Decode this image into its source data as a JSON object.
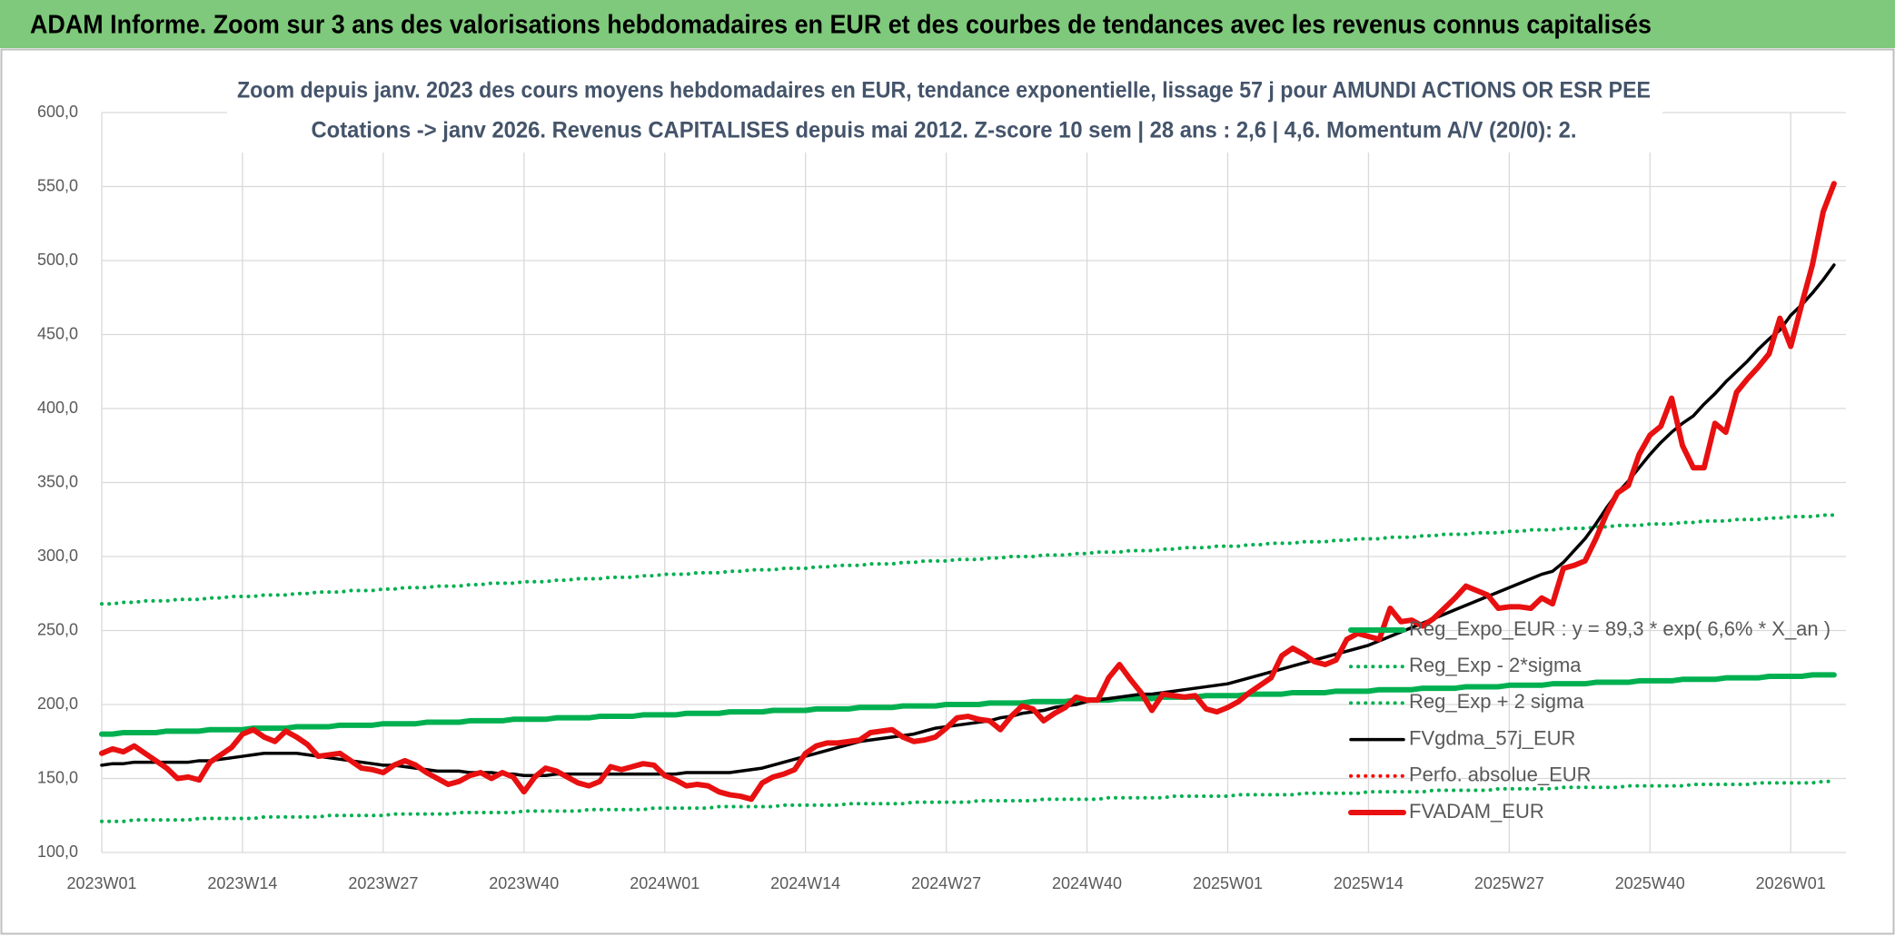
{
  "header": {
    "title": "ADAM Informe. Zoom sur 3 ans des valorisations hebdomadaires en EUR et des courbes de tendances avec les revenus connus capitalisés"
  },
  "chart_data": {
    "type": "line",
    "title": "Zoom depuis janv. 2023 des cours moyens hebdomadaires en EUR, tendance exponentielle, lissage 57 j pour AMUNDI ACTIONS OR ESR PEE",
    "subtitle": "Cotations -> janv 2026. Revenus CAPITALISES depuis mai 2012. Z-score 10 sem | 28 ans : 2,6 | 4,6. Momentum A/V (20/0): 2.",
    "ylim": [
      100,
      600
    ],
    "yticks": [
      {
        "value": 100,
        "label": "100,0"
      },
      {
        "value": 150,
        "label": "150,0"
      },
      {
        "value": 200,
        "label": "200,0"
      },
      {
        "value": 250,
        "label": "250,0"
      },
      {
        "value": 300,
        "label": "300,0"
      },
      {
        "value": 350,
        "label": "350,0"
      },
      {
        "value": 400,
        "label": "400,0"
      },
      {
        "value": 450,
        "label": "450,0"
      },
      {
        "value": 500,
        "label": "500,0"
      },
      {
        "value": 550,
        "label": "550,0"
      },
      {
        "value": 600,
        "label": "600,0"
      }
    ],
    "grid": true,
    "legend": "right",
    "categories": [
      "2023W01",
      null,
      null,
      null,
      null,
      null,
      null,
      null,
      null,
      null,
      null,
      null,
      null,
      "2023W14",
      null,
      null,
      null,
      null,
      null,
      null,
      null,
      null,
      null,
      null,
      null,
      null,
      "2023W27",
      null,
      null,
      null,
      null,
      null,
      null,
      null,
      null,
      null,
      null,
      null,
      null,
      "2023W40",
      null,
      null,
      null,
      null,
      null,
      null,
      null,
      null,
      null,
      null,
      null,
      null,
      "2024W01",
      null,
      null,
      null,
      null,
      null,
      null,
      null,
      null,
      null,
      null,
      null,
      null,
      "2024W14",
      null,
      null,
      null,
      null,
      null,
      null,
      null,
      null,
      null,
      null,
      null,
      null,
      "2024W27",
      null,
      null,
      null,
      null,
      null,
      null,
      null,
      null,
      null,
      null,
      null,
      null,
      "2024W40",
      null,
      null,
      null,
      null,
      null,
      null,
      null,
      null,
      null,
      null,
      null,
      null,
      "2025W01",
      null,
      null,
      null,
      null,
      null,
      null,
      null,
      null,
      null,
      null,
      null,
      null,
      "2025W14",
      null,
      null,
      null,
      null,
      null,
      null,
      null,
      null,
      null,
      null,
      null,
      null,
      "2025W27",
      null,
      null,
      null,
      null,
      null,
      null,
      null,
      null,
      null,
      null,
      null,
      null,
      "2025W40",
      null,
      null,
      null,
      null,
      null,
      null,
      null,
      null,
      null,
      null,
      null,
      null,
      "2026W01",
      null,
      null,
      null,
      null
    ],
    "series": [
      {
        "name": "Reg_Expo_EUR : y = 89,3 * exp( 6,6% * X_an )",
        "color": "#00b050",
        "style": "thick",
        "values": [
          180,
          180,
          181,
          181,
          181,
          181,
          182,
          182,
          182,
          182,
          183,
          183,
          183,
          183,
          184,
          184,
          184,
          184,
          185,
          185,
          185,
          185,
          186,
          186,
          186,
          186,
          187,
          187,
          187,
          187,
          188,
          188,
          188,
          188,
          189,
          189,
          189,
          189,
          190,
          190,
          190,
          190,
          191,
          191,
          191,
          191,
          192,
          192,
          192,
          192,
          193,
          193,
          193,
          193,
          194,
          194,
          194,
          194,
          195,
          195,
          195,
          195,
          196,
          196,
          196,
          196,
          197,
          197,
          197,
          197,
          198,
          198,
          198,
          198,
          199,
          199,
          199,
          199,
          200,
          200,
          200,
          200,
          201,
          201,
          201,
          201,
          202,
          202,
          202,
          202,
          203,
          203,
          203,
          203,
          204,
          204,
          204,
          204,
          205,
          205,
          205,
          205,
          206,
          206,
          206,
          206,
          207,
          207,
          207,
          207,
          208,
          208,
          208,
          208,
          209,
          209,
          209,
          209,
          210,
          210,
          210,
          210,
          211,
          211,
          211,
          211,
          212,
          212,
          212,
          212,
          213,
          213,
          213,
          213,
          214,
          214,
          214,
          214,
          215,
          215,
          215,
          215,
          216,
          216,
          216,
          216,
          217,
          217,
          217,
          217,
          218,
          218,
          218,
          218,
          219,
          219,
          219,
          219,
          220,
          220,
          220
        ]
      },
      {
        "name": "Reg_Exp - 2*sigma",
        "color": "#00b050",
        "style": "dotted",
        "values": [
          121,
          121,
          121,
          122,
          122,
          122,
          122,
          122,
          122,
          123,
          123,
          123,
          123,
          123,
          123,
          124,
          124,
          124,
          124,
          124,
          124,
          125,
          125,
          125,
          125,
          125,
          125,
          126,
          126,
          126,
          126,
          126,
          126,
          127,
          127,
          127,
          127,
          127,
          127,
          128,
          128,
          128,
          128,
          128,
          128,
          129,
          129,
          129,
          129,
          129,
          129,
          130,
          130,
          130,
          130,
          130,
          130,
          131,
          131,
          131,
          131,
          131,
          131,
          132,
          132,
          132,
          132,
          132,
          132,
          133,
          133,
          133,
          133,
          133,
          133,
          134,
          134,
          134,
          134,
          134,
          134,
          135,
          135,
          135,
          135,
          135,
          135,
          136,
          136,
          136,
          136,
          136,
          136,
          137,
          137,
          137,
          137,
          137,
          137,
          138,
          138,
          138,
          138,
          138,
          138,
          139,
          139,
          139,
          139,
          139,
          139,
          140,
          140,
          140,
          140,
          140,
          140,
          141,
          141,
          141,
          141,
          141,
          141,
          142,
          142,
          142,
          142,
          142,
          142,
          143,
          143,
          143,
          143,
          143,
          143,
          144,
          144,
          144,
          144,
          144,
          144,
          145,
          145,
          145,
          145,
          145,
          145,
          146,
          146,
          146,
          146,
          146,
          146,
          147,
          147,
          147,
          147,
          147,
          147,
          148,
          148
        ]
      },
      {
        "name": "Reg_Exp + 2 sigma",
        "color": "#00b050",
        "style": "dotted",
        "values": [
          268,
          268,
          269,
          269,
          270,
          270,
          270,
          271,
          271,
          271,
          272,
          272,
          273,
          273,
          273,
          274,
          274,
          274,
          275,
          275,
          276,
          276,
          276,
          277,
          277,
          277,
          278,
          278,
          279,
          279,
          279,
          280,
          280,
          280,
          281,
          281,
          282,
          282,
          282,
          283,
          283,
          283,
          284,
          284,
          285,
          285,
          285,
          286,
          286,
          286,
          287,
          287,
          288,
          288,
          288,
          289,
          289,
          289,
          290,
          290,
          291,
          291,
          291,
          292,
          292,
          292,
          293,
          293,
          294,
          294,
          294,
          295,
          295,
          295,
          296,
          296,
          297,
          297,
          297,
          298,
          298,
          298,
          299,
          299,
          300,
          300,
          300,
          301,
          301,
          301,
          302,
          302,
          303,
          303,
          303,
          304,
          304,
          304,
          305,
          305,
          306,
          306,
          306,
          307,
          307,
          307,
          308,
          308,
          309,
          309,
          309,
          310,
          310,
          310,
          311,
          311,
          312,
          312,
          312,
          313,
          313,
          313,
          314,
          314,
          315,
          315,
          315,
          316,
          316,
          316,
          317,
          317,
          318,
          318,
          318,
          319,
          319,
          319,
          320,
          320,
          321,
          321,
          321,
          322,
          322,
          322,
          323,
          323,
          324,
          324,
          324,
          325,
          325,
          325,
          326,
          326,
          327,
          327,
          327,
          328,
          328
        ]
      },
      {
        "name": "FVgdma_57j_EUR",
        "color": "#000000",
        "style": "solid",
        "values": [
          159,
          160,
          160,
          161,
          161,
          161,
          161,
          161,
          161,
          162,
          162,
          163,
          164,
          165,
          166,
          167,
          167,
          167,
          167,
          166,
          165,
          164,
          163,
          162,
          161,
          160,
          159,
          159,
          158,
          157,
          156,
          155,
          155,
          155,
          154,
          154,
          154,
          153,
          153,
          152,
          152,
          152,
          153,
          153,
          153,
          153,
          153,
          153,
          153,
          153,
          153,
          153,
          153,
          153,
          154,
          154,
          154,
          154,
          154,
          155,
          156,
          157,
          159,
          161,
          163,
          165,
          167,
          169,
          171,
          173,
          175,
          176,
          177,
          178,
          179,
          180,
          182,
          184,
          185,
          186,
          187,
          188,
          189,
          191,
          192,
          194,
          195,
          196,
          198,
          199,
          200,
          202,
          203,
          204,
          205,
          206,
          207,
          207,
          208,
          209,
          210,
          211,
          212,
          213,
          214,
          216,
          218,
          220,
          222,
          224,
          226,
          228,
          230,
          232,
          234,
          236,
          238,
          240,
          243,
          246,
          249,
          252,
          255,
          258,
          261,
          264,
          267,
          270,
          273,
          276,
          279,
          282,
          285,
          288,
          290,
          296,
          304,
          312,
          322,
          333,
          343,
          351,
          360,
          369,
          377,
          384,
          390,
          395,
          403,
          410,
          418,
          425,
          432,
          440,
          447,
          453,
          463,
          470,
          478,
          487,
          497
        ]
      },
      {
        "name": "Perfo. absolue_EUR",
        "color": "#ff0000",
        "style": "dotted",
        "values": [
          null,
          null,
          null,
          null,
          null,
          null,
          null,
          null,
          null,
          null,
          null,
          null,
          null,
          null,
          null,
          null,
          null,
          null,
          null,
          null,
          null,
          null,
          null,
          null,
          null,
          null,
          null,
          null,
          null,
          null,
          null,
          null,
          null,
          null,
          null,
          null,
          null,
          null,
          null,
          null,
          null,
          null,
          null,
          null,
          null,
          null,
          null,
          null,
          null,
          null,
          null,
          null,
          null,
          null,
          null,
          null,
          null,
          null,
          null,
          null,
          null,
          null,
          null,
          null,
          null,
          null,
          null,
          null,
          null,
          null,
          null,
          null,
          null,
          null,
          null,
          null,
          null,
          null,
          null,
          null,
          null,
          null,
          null,
          null,
          null,
          null,
          null,
          null,
          null,
          null,
          null,
          null,
          null,
          null,
          null,
          null,
          null,
          null,
          null,
          null,
          null,
          null,
          null,
          null,
          null,
          null,
          null,
          null,
          null,
          null,
          null,
          null,
          null,
          null,
          null,
          null,
          null,
          null,
          null,
          null,
          null,
          null,
          null,
          null,
          null,
          null,
          null,
          null,
          null,
          null,
          null,
          null,
          null,
          null,
          null,
          null,
          null,
          null,
          null,
          null,
          null,
          null,
          null,
          null,
          null,
          null,
          null,
          null,
          null,
          null,
          null,
          null,
          null,
          null,
          null,
          null,
          null,
          null,
          null,
          null,
          null
        ]
      },
      {
        "name": "FVADAM_EUR",
        "color": "#e81010",
        "style": "thick",
        "values": [
          167,
          170,
          168,
          172,
          167,
          162,
          157,
          150,
          151,
          149,
          161,
          166,
          171,
          180,
          183,
          178,
          175,
          182,
          178,
          173,
          165,
          166,
          167,
          162,
          157,
          156,
          154,
          159,
          162,
          159,
          154,
          150,
          146,
          148,
          152,
          154,
          150,
          154,
          151,
          141,
          151,
          157,
          155,
          151,
          147,
          145,
          148,
          158,
          156,
          158,
          160,
          159,
          152,
          149,
          145,
          146,
          145,
          141,
          139,
          138,
          136,
          147,
          151,
          153,
          156,
          167,
          172,
          174,
          174,
          175,
          176,
          181,
          182,
          183,
          178,
          175,
          176,
          178,
          184,
          191,
          192,
          190,
          189,
          183,
          192,
          199,
          197,
          189,
          194,
          198,
          205,
          203,
          203,
          218,
          227,
          217,
          208,
          196,
          207,
          206,
          205,
          206,
          197,
          195,
          198,
          202,
          208,
          213,
          218,
          233,
          238,
          234,
          229,
          227,
          230,
          244,
          248,
          246,
          244,
          265,
          256,
          257,
          253,
          258,
          265,
          272,
          280,
          277,
          274,
          265,
          266,
          266,
          265,
          272,
          268,
          292,
          294,
          297,
          312,
          329,
          343,
          348,
          369,
          382,
          388,
          407,
          375,
          360,
          360,
          390,
          384,
          411,
          420,
          428,
          437,
          461,
          442,
          470,
          497,
          533,
          552
        ]
      }
    ]
  }
}
